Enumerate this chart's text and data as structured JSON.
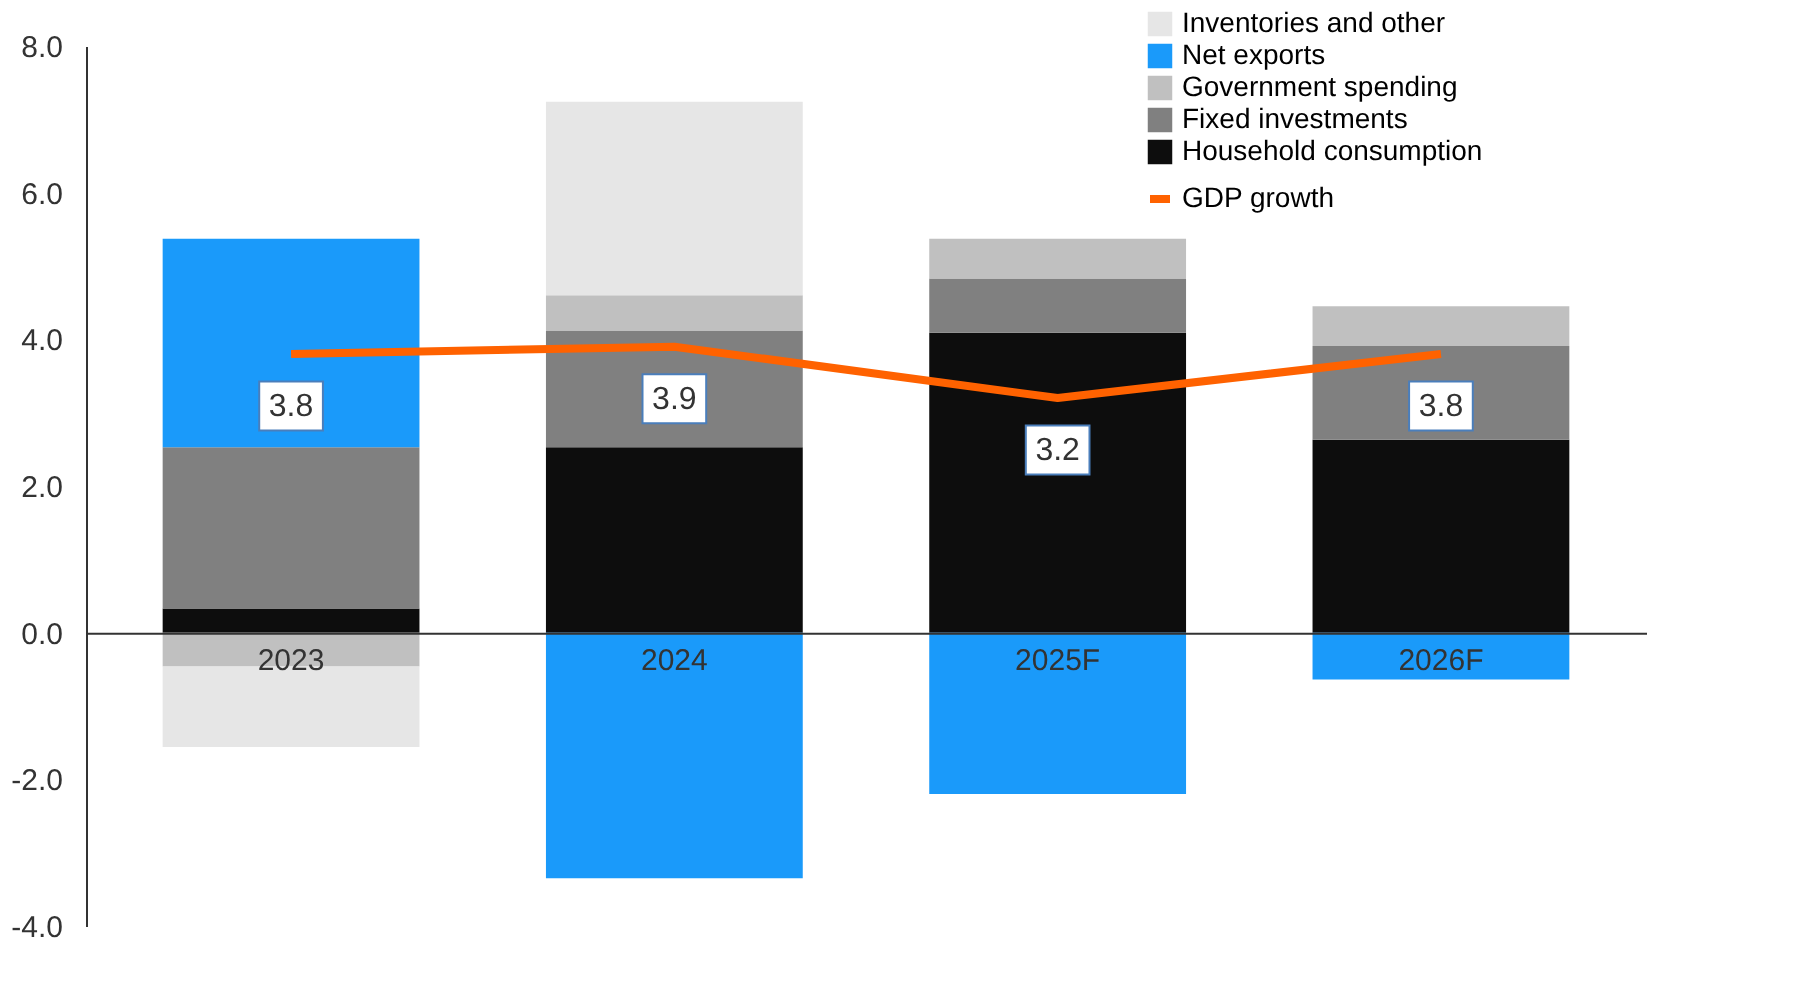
{
  "chart_data": {
    "type": "bar",
    "stacked": true,
    "categories": [
      "2023",
      "2024",
      "2025F",
      "2026F"
    ],
    "series": [
      {
        "name": "Household consumption",
        "color": "#0d0d0d",
        "values": [
          0.33,
          2.53,
          4.09,
          2.63
        ]
      },
      {
        "name": "Fixed investments",
        "color": "#808080",
        "values": [
          2.2,
          1.59,
          0.74,
          1.28
        ]
      },
      {
        "name": "Government spending",
        "color": "#c0c0c0",
        "values": [
          -0.46,
          0.48,
          0.54,
          0.54
        ]
      },
      {
        "name": "Net exports",
        "color": "#1a9afa",
        "values": [
          2.84,
          -3.35,
          -2.2,
          -0.64
        ]
      },
      {
        "name": "Inventories and other",
        "color": "#e6e6e6",
        "values": [
          -1.1,
          2.64,
          0,
          0
        ]
      },
      {
        "name": "GDP growth",
        "type": "line",
        "color": "#ff6200",
        "values": [
          3.8,
          3.9,
          3.2,
          3.8
        ],
        "data_labels": true
      }
    ],
    "ylim": [
      -4,
      8
    ],
    "yticks": [
      {
        "value": -4,
        "label": "-4.0"
      },
      {
        "value": -2,
        "label": "-2.0"
      },
      {
        "value": 0,
        "label": "0.0"
      },
      {
        "value": 2,
        "label": "2.0"
      },
      {
        "value": 4,
        "label": "4.0"
      },
      {
        "value": 6,
        "label": "6.0"
      },
      {
        "value": 8,
        "label": "8.0"
      }
    ],
    "grid": false,
    "legend": "top right"
  }
}
